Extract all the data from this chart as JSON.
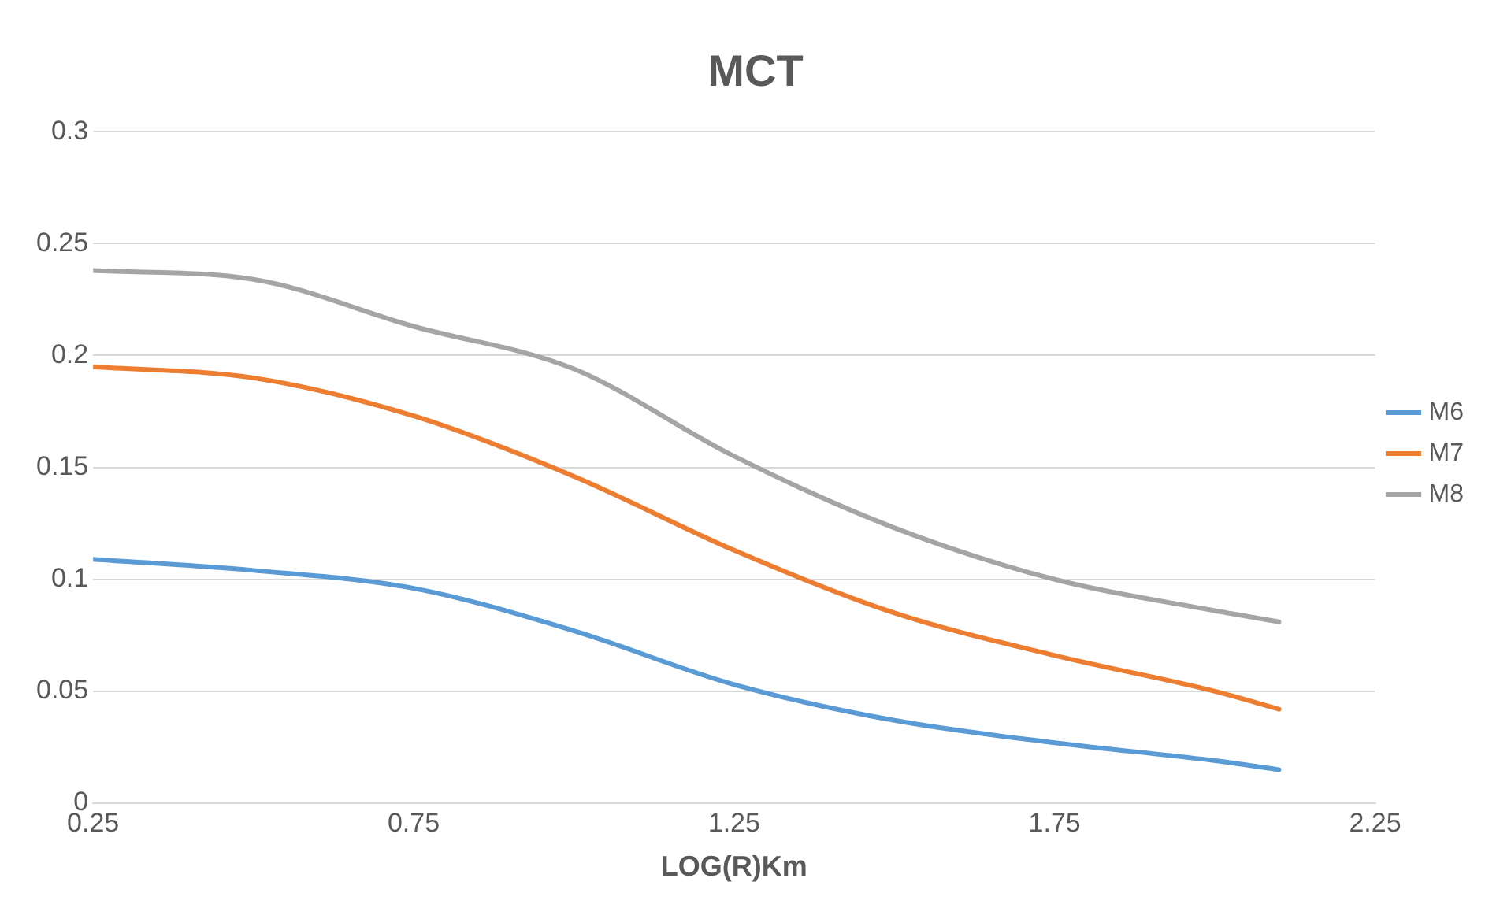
{
  "chart_data": {
    "type": "line",
    "title": "MCT",
    "xlabel": "LOG(R)Km",
    "x": [
      0.25,
      0.5,
      0.75,
      1.0,
      1.25,
      1.5,
      1.75,
      2.0,
      2.1
    ],
    "series": [
      {
        "name": "M6",
        "color": "#5b9bd5",
        "values": [
          0.109,
          0.104,
          0.096,
          0.077,
          0.053,
          0.037,
          0.027,
          0.019,
          0.015
        ]
      },
      {
        "name": "M7",
        "color": "#ed7d31",
        "values": [
          0.195,
          0.19,
          0.173,
          0.146,
          0.113,
          0.085,
          0.066,
          0.05,
          0.042
        ]
      },
      {
        "name": "M8",
        "color": "#a5a5a5",
        "values": [
          0.238,
          0.234,
          0.213,
          0.194,
          0.155,
          0.123,
          0.1,
          0.086,
          0.081
        ]
      }
    ],
    "xlim": [
      0.25,
      2.25
    ],
    "xticks": [
      0.25,
      0.75,
      1.25,
      1.75,
      2.25
    ],
    "ylim": [
      0,
      0.3
    ],
    "yticks": [
      0,
      0.05,
      0.1,
      0.15,
      0.2,
      0.25,
      0.3
    ],
    "grid": "y",
    "legend": "right",
    "marker": "none",
    "line_style": "solid"
  }
}
